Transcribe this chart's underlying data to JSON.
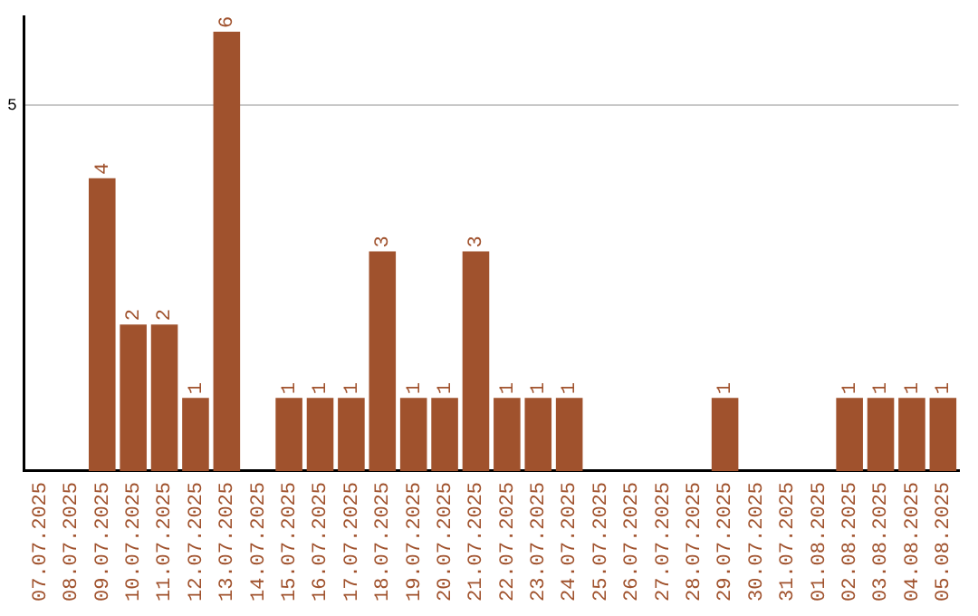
{
  "chart_data": {
    "type": "bar",
    "categories": [
      "07.07.2025",
      "08.07.2025",
      "09.07.2025",
      "10.07.2025",
      "11.07.2025",
      "12.07.2025",
      "13.07.2025",
      "14.07.2025",
      "15.07.2025",
      "16.07.2025",
      "17.07.2025",
      "18.07.2025",
      "19.07.2025",
      "20.07.2025",
      "21.07.2025",
      "22.07.2025",
      "23.07.2025",
      "24.07.2025",
      "25.07.2025",
      "26.07.2025",
      "27.07.2025",
      "28.07.2025",
      "29.07.2025",
      "30.07.2025",
      "31.07.2025",
      "01.08.2025",
      "02.08.2025",
      "03.08.2025",
      "04.08.2025",
      "05.08.2025"
    ],
    "values": [
      null,
      null,
      4,
      2,
      2,
      1,
      6,
      null,
      1,
      1,
      1,
      3,
      1,
      1,
      3,
      1,
      1,
      1,
      null,
      null,
      null,
      null,
      1,
      null,
      null,
      null,
      1,
      1,
      1,
      1
    ],
    "color": "#a0522d",
    "ylim": [
      0,
      6.2
    ],
    "yticks": [
      5
    ],
    "grid": "y",
    "legend": false,
    "data_labels": true
  }
}
